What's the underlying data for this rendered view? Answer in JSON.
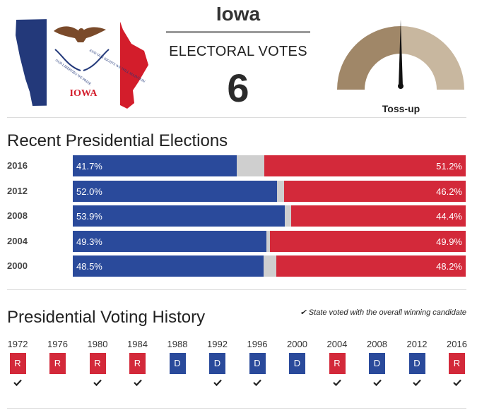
{
  "header": {
    "state_name": "Iowa",
    "electoral_votes_label": "ELECTORAL VOTES",
    "electoral_votes": "6",
    "rating_label": "Toss-up",
    "flag": {
      "text": "IOWA",
      "ribbon_left": "OUR LIBERTIES WE PRIZE",
      "ribbon_right": "AND OUR RIGHTS WE WILL MAINTAIN",
      "colors": {
        "blue": "#23397a",
        "white": "#ffffff",
        "red": "#d31d2b",
        "eagle": "#7a4a2a"
      }
    },
    "gauge": {
      "colors": {
        "dark": "#a08768",
        "light": "#c8b79f",
        "needle": "#111111"
      },
      "position": "centered"
    }
  },
  "recent_elections": {
    "title": "Recent Presidential Elections",
    "colors": {
      "dem": "#2a4a9b",
      "rep": "#d3293a",
      "other": "#cfcfcf"
    }
  },
  "voting_history": {
    "title": "Presidential Voting History",
    "note": "State voted with the overall winning candidate",
    "colors": {
      "R": "#d3293a",
      "D": "#2a4a9b"
    }
  },
  "chart_data": [
    {
      "type": "bar",
      "title": "Recent Presidential Elections",
      "orientation": "horizontal-stacked",
      "categories": [
        "2016",
        "2012",
        "2008",
        "2004",
        "2000"
      ],
      "series": [
        {
          "values": [
            41.7,
            52.0,
            53.9,
            49.3,
            48.5
          ],
          "labels": [
            "41.7%",
            "52.0%",
            "53.9%",
            "49.3%",
            "48.5%"
          ]
        },
        {
          "values": [
            51.2,
            46.2,
            44.4,
            49.9,
            48.2
          ],
          "labels": [
            "51.2%",
            "46.2%",
            "44.4%",
            "49.9%",
            "48.2%"
          ]
        }
      ],
      "xlim": [
        0,
        100
      ]
    },
    {
      "type": "table",
      "title": "Presidential Voting History",
      "years": [
        "1972",
        "1976",
        "1980",
        "1984",
        "1988",
        "1992",
        "1996",
        "2000",
        "2004",
        "2008",
        "2012",
        "2016"
      ],
      "party": [
        "R",
        "R",
        "R",
        "R",
        "D",
        "D",
        "D",
        "D",
        "R",
        "D",
        "D",
        "R"
      ],
      "voted_with_winner": [
        true,
        false,
        true,
        true,
        false,
        true,
        true,
        false,
        true,
        true,
        true,
        true
      ]
    }
  ]
}
